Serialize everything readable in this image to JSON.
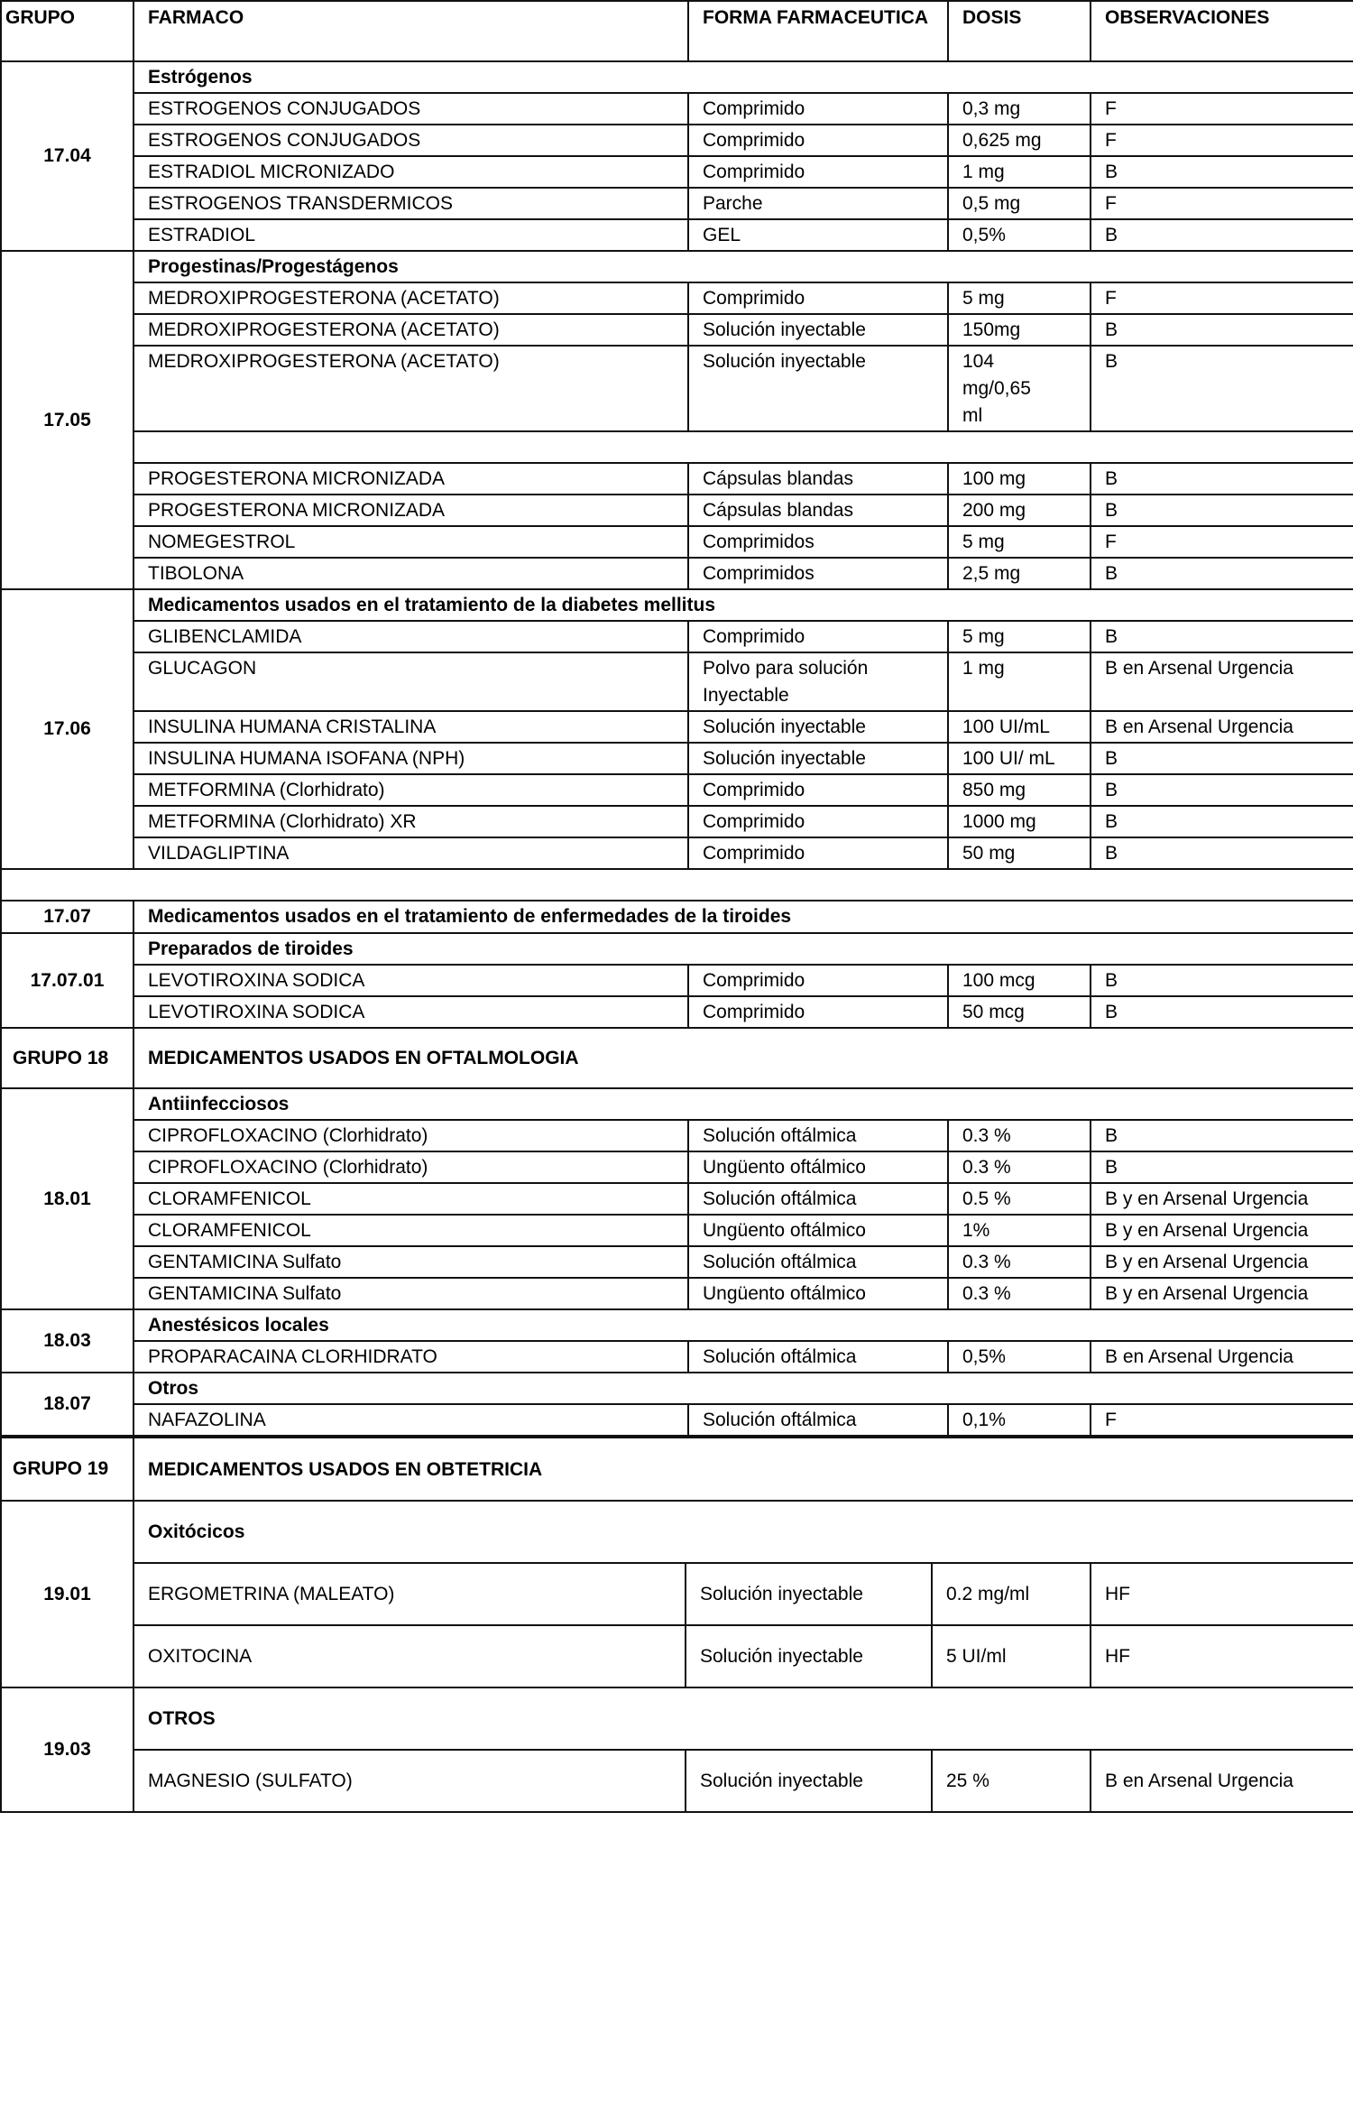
{
  "header": {
    "grupo": "GRUPO",
    "farmaco": "FARMACO",
    "forma": "FORMA FARMACEUTICA",
    "dosis": "DOSIS",
    "observaciones": "OBSERVACIONES"
  },
  "sections": [
    {
      "code": "17.04",
      "rows": [
        {
          "type": "title",
          "text": "Estrógenos"
        },
        {
          "type": "item",
          "cells": [
            "ESTROGENOS CONJUGADOS",
            "Comprimido",
            "0,3 mg",
            "F"
          ]
        },
        {
          "type": "item",
          "cells": [
            "ESTROGENOS CONJUGADOS",
            "Comprimido",
            "0,625 mg",
            "F"
          ]
        },
        {
          "type": "item",
          "cells": [
            "ESTRADIOL MICRONIZADO",
            "Comprimido",
            "1 mg",
            "B"
          ]
        },
        {
          "type": "item",
          "cells": [
            "ESTROGENOS TRANSDERMICOS",
            "Parche",
            "0,5 mg",
            "F"
          ]
        },
        {
          "type": "item",
          "cells": [
            "ESTRADIOL",
            "GEL",
            "0,5%",
            "B"
          ]
        }
      ]
    },
    {
      "code": "17.05",
      "rows": [
        {
          "type": "title",
          "text": "Progestinas/Progestágenos"
        },
        {
          "type": "item",
          "cells": [
            "MEDROXIPROGESTERONA (ACETATO)",
            "Comprimido",
            "5 mg",
            "F"
          ]
        },
        {
          "type": "item",
          "cells": [
            "MEDROXIPROGESTERONA (ACETATO)",
            "Solución inyectable",
            "150mg",
            "B"
          ]
        },
        {
          "type": "item",
          "cells": [
            "MEDROXIPROGESTERONA (ACETATO)",
            "Solución inyectable",
            "104 mg/0,65 ml",
            "B"
          ]
        },
        {
          "type": "blank"
        },
        {
          "type": "item",
          "cells": [
            "PROGESTERONA MICRONIZADA",
            "Cápsulas blandas",
            "100 mg",
            "B"
          ]
        },
        {
          "type": "item",
          "cells": [
            "PROGESTERONA MICRONIZADA",
            "Cápsulas blandas",
            "200 mg",
            "B"
          ]
        },
        {
          "type": "item",
          "cells": [
            "NOMEGESTROL",
            "Comprimidos",
            "5 mg",
            "F"
          ]
        },
        {
          "type": "item",
          "cells": [
            "TIBOLONA",
            "Comprimidos",
            "2,5 mg",
            "B"
          ]
        }
      ]
    },
    {
      "code": "17.06",
      "rows": [
        {
          "type": "title",
          "text": "Medicamentos usados en el tratamiento de la diabetes mellitus"
        },
        {
          "type": "item",
          "cells": [
            "GLIBENCLAMIDA",
            "Comprimido",
            "5 mg",
            "B"
          ]
        },
        {
          "type": "item",
          "cells": [
            "GLUCAGON",
            "Polvo para solución Inyectable",
            "1 mg",
            "B en Arsenal Urgencia"
          ]
        },
        {
          "type": "item",
          "cells": [
            "INSULINA HUMANA CRISTALINA",
            "Solución inyectable",
            "100 UI/mL",
            "B en Arsenal Urgencia"
          ]
        },
        {
          "type": "item",
          "cells": [
            "INSULINA HUMANA ISOFANA (NPH)",
            "Solución inyectable",
            "100 UI/ mL",
            "B"
          ]
        },
        {
          "type": "item",
          "cells": [
            "METFORMINA (Clorhidrato)",
            "Comprimido",
            "850 mg",
            "B"
          ]
        },
        {
          "type": "item",
          "cells": [
            "METFORMINA (Clorhidrato) XR",
            "Comprimido",
            "1000 mg",
            "B"
          ]
        },
        {
          "type": "item",
          "cells": [
            "VILDAGLIPTINA",
            "Comprimido",
            "50 mg",
            "B"
          ]
        }
      ]
    },
    {
      "code": "",
      "fullblank": true,
      "rows": []
    },
    {
      "code": "17.07",
      "rows": [
        {
          "type": "title",
          "text": "Medicamentos usados en el tratamiento de enfermedades de la tiroides"
        }
      ]
    },
    {
      "code": "17.07.01",
      "rows": [
        {
          "type": "title",
          "text": "Preparados de tiroides"
        },
        {
          "type": "item",
          "cells": [
            "LEVOTIROXINA SODICA",
            "Comprimido",
            "100 mcg",
            "B"
          ]
        },
        {
          "type": "item",
          "cells": [
            "LEVOTIROXINA SODICA",
            "Comprimido",
            "50 mcg",
            "B"
          ]
        }
      ]
    },
    {
      "code": "GRUPO 18",
      "group": true,
      "rows": [
        {
          "type": "bigtitle",
          "text": "MEDICAMENTOS USADOS EN OFTALMOLOGIA"
        }
      ]
    },
    {
      "code": "18.01",
      "rows": [
        {
          "type": "title",
          "text": "Antiinfecciosos"
        },
        {
          "type": "item",
          "cells": [
            "CIPROFLOXACINO (Clorhidrato)",
            "Solución oftálmica",
            "0.3 %",
            "B"
          ]
        },
        {
          "type": "item",
          "cells": [
            "CIPROFLOXACINO (Clorhidrato)",
            "Ungüento oftálmico",
            "0.3 %",
            "B"
          ]
        },
        {
          "type": "item",
          "cells": [
            "CLORAMFENICOL",
            "Solución oftálmica",
            "0.5 %",
            "B y en Arsenal Urgencia"
          ]
        },
        {
          "type": "item",
          "cells": [
            "CLORAMFENICOL",
            "Ungüento oftálmico",
            "1%",
            "B y en Arsenal Urgencia"
          ]
        },
        {
          "type": "item",
          "cells": [
            "GENTAMICINA Sulfato",
            "Solución oftálmica",
            "0.3 %",
            "B y en Arsenal Urgencia"
          ]
        },
        {
          "type": "item",
          "cells": [
            "GENTAMICINA Sulfato",
            "Ungüento oftálmico",
            "0.3 %",
            "B y en Arsenal Urgencia"
          ]
        }
      ]
    },
    {
      "code": "18.03",
      "rows": [
        {
          "type": "title",
          "text": "Anestésicos locales"
        },
        {
          "type": "item",
          "cells": [
            "PROPARACAINA CLORHIDRATO",
            "Solución oftálmica",
            "0,5%",
            "B en Arsenal Urgencia"
          ]
        }
      ]
    },
    {
      "code": "18.07",
      "rows": [
        {
          "type": "title",
          "text": "Otros"
        },
        {
          "type": "item",
          "cells": [
            "NAFAZOLINA",
            "Solución oftálmica",
            "0,1%",
            "F"
          ]
        }
      ]
    }
  ],
  "sections19": [
    {
      "code": "GRUPO 19",
      "group": true,
      "rows": [
        {
          "type": "bigtitle",
          "text": "MEDICAMENTOS USADOS EN OBTETRICIA"
        }
      ]
    },
    {
      "code": "19.01",
      "rows": [
        {
          "type": "title",
          "text": "Oxitócicos"
        },
        {
          "type": "item",
          "cells": [
            "ERGOMETRINA (MALEATO)",
            "Solución inyectable",
            "0.2 mg/ml",
            "HF"
          ]
        },
        {
          "type": "item",
          "cells": [
            "OXITOCINA",
            "Solución inyectable",
            "5 UI/ml",
            "HF"
          ]
        }
      ]
    },
    {
      "code": "19.03",
      "rows": [
        {
          "type": "title",
          "text": "OTROS"
        },
        {
          "type": "item",
          "cells": [
            "MAGNESIO (SULFATO)",
            "Solución inyectable",
            "25 %",
            "B en Arsenal Urgencia"
          ]
        }
      ]
    }
  ]
}
